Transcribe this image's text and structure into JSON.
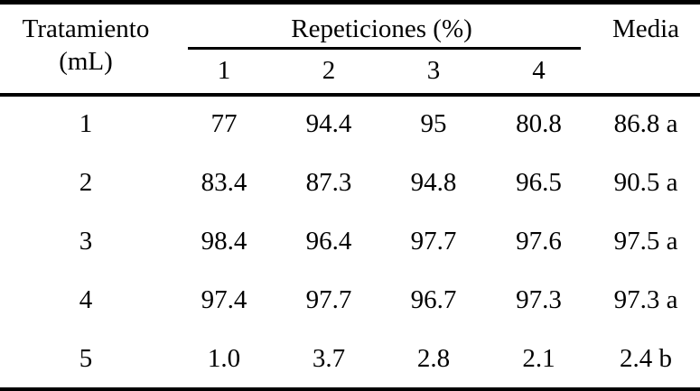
{
  "figure": {
    "kind": "academic-paper-table",
    "language": "es"
  },
  "colors": {
    "text": "#000000",
    "rules": "#000000",
    "background": "#ffffff"
  },
  "chart_data": {
    "type": "table",
    "columns": [
      "Tratamiento (mL)",
      "Repeticiones 1",
      "Repeticiones 2",
      "Repeticiones 3",
      "Repeticiones 4",
      "Media"
    ],
    "rows": [
      [
        "1",
        "77",
        "94.4",
        "95",
        "80.8",
        "86.8 a"
      ],
      [
        "2",
        "83.4",
        "87.3",
        "94.8",
        "96.5",
        "90.5 a"
      ],
      [
        "3",
        "98.4",
        "96.4",
        "97.7",
        "97.6",
        "97.5 a"
      ],
      [
        "4",
        "97.4",
        "97.7",
        "96.7",
        "97.3",
        "97.3 a"
      ],
      [
        "5",
        "1.0",
        "3.7",
        "2.8",
        "2.1",
        "2.4 b"
      ]
    ]
  },
  "table": {
    "treatment_header_line1": "Tratamiento",
    "treatment_header_line2": "(mL)",
    "group_header": "Repeticiones (%)",
    "rep_cols": [
      "1",
      "2",
      "3",
      "4"
    ],
    "media_header": "Media",
    "rows": [
      {
        "treatment": "1",
        "reps": [
          "77",
          "94.4",
          "95",
          "80.8"
        ],
        "media": "86.8 a"
      },
      {
        "treatment": "2",
        "reps": [
          "83.4",
          "87.3",
          "94.8",
          "96.5"
        ],
        "media": "90.5 a"
      },
      {
        "treatment": "3",
        "reps": [
          "98.4",
          "96.4",
          "97.7",
          "97.6"
        ],
        "media": "97.5 a"
      },
      {
        "treatment": "4",
        "reps": [
          "97.4",
          "97.7",
          "96.7",
          "97.3"
        ],
        "media": "97.3 a"
      },
      {
        "treatment": "5",
        "reps": [
          "1.0",
          "3.7",
          "2.8",
          "2.1"
        ],
        "media": "2.4 b"
      }
    ]
  }
}
